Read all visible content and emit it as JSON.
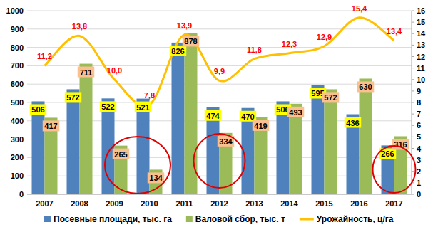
{
  "chart_data": {
    "type": "bar",
    "categories": [
      "2007",
      "2008",
      "2009",
      "2010",
      "2011",
      "2012",
      "2013",
      "2014",
      "2015",
      "2016",
      "2017"
    ],
    "series": [
      {
        "name": "Посевные площади, тыс. га",
        "color": "#4f81bd",
        "type": "bar",
        "values": [
          506,
          572,
          522,
          521,
          826,
          474,
          470,
          506,
          595,
          436,
          266
        ]
      },
      {
        "name": "Валовой сбор, тыс. т",
        "color": "#9bbb59",
        "type": "bar",
        "values": [
          417,
          711,
          265,
          134,
          878,
          334,
          419,
          493,
          572,
          630,
          316
        ]
      },
      {
        "name": "Урожайность, ц/га",
        "color": "#ffc000",
        "type": "line",
        "axis": "y2",
        "line_style": "smooth",
        "values": [
          11.2,
          13.8,
          10.0,
          7.8,
          13.9,
          9.9,
          11.8,
          12.3,
          12.9,
          15.4,
          13.4
        ],
        "value_labels": [
          "11,2",
          "13,8",
          "10,0",
          "7,8",
          "13,9",
          "9,9",
          "11,8",
          "12,3",
          "12,9",
          "15,4",
          "13,4"
        ]
      }
    ],
    "ylim": [
      0,
      1000
    ],
    "yticks": [
      0,
      100,
      200,
      300,
      400,
      500,
      600,
      700,
      800,
      900,
      1000
    ],
    "y2lim": [
      0,
      16
    ],
    "y2ticks": [
      0,
      1,
      2,
      3,
      4,
      5,
      6,
      7,
      8,
      9,
      10,
      11,
      12,
      13,
      14,
      15,
      16
    ],
    "grid": true,
    "legend": "bottom",
    "data_labels": true
  }
}
